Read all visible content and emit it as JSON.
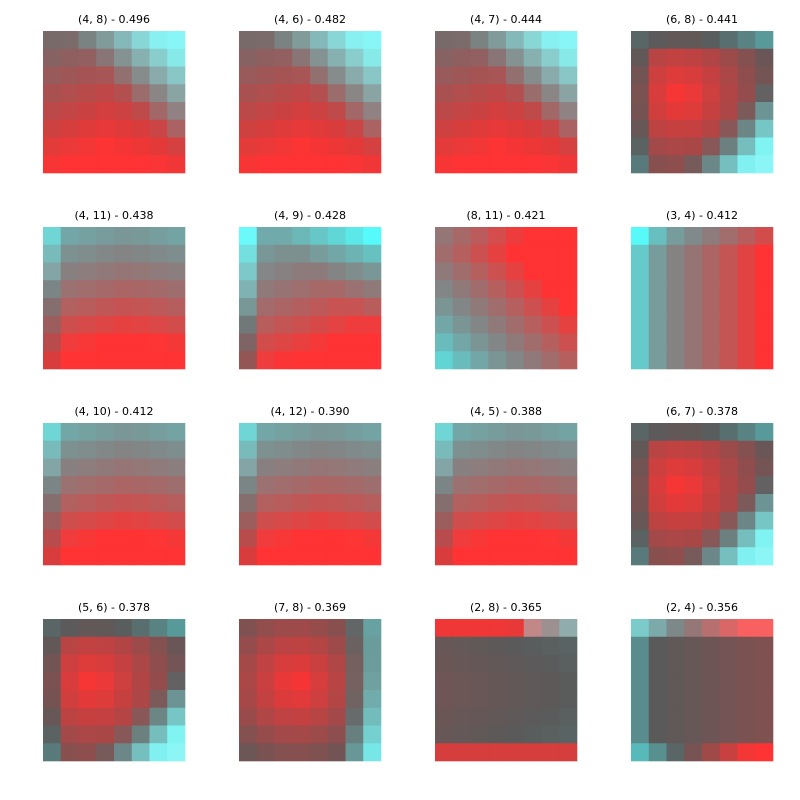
{
  "chart_data": {
    "type": "heatmap",
    "layout": {
      "rows": 4,
      "cols": 4
    },
    "cell_grid": 8,
    "axes_visible": false,
    "colormap": {
      "low": "#55FFFF",
      "mid": "#5A5A5A",
      "high": "#FF3333"
    },
    "panels": [
      {
        "title": "(4, 8) - 0.496",
        "pattern": "bottom-red-topright-cyan"
      },
      {
        "title": "(4, 6) - 0.482",
        "pattern": "bottom-red-topright-cyan"
      },
      {
        "title": "(4, 7) - 0.444",
        "pattern": "bottom-red-topright-cyan"
      },
      {
        "title": "(6, 8) - 0.441",
        "pattern": "center-red-bottomright-cyan"
      },
      {
        "title": "(4, 11) - 0.438",
        "pattern": "top-cyan-bottom-red"
      },
      {
        "title": "(4, 9) - 0.428",
        "pattern": "topright-cyan-bottom-red"
      },
      {
        "title": "(8, 11) - 0.421",
        "pattern": "topright-red-bottomleft-cyan"
      },
      {
        "title": "(3, 4) - 0.412",
        "pattern": "left-cyan-right-red"
      },
      {
        "title": "(4, 10) - 0.412",
        "pattern": "top-cyan-bottom-red"
      },
      {
        "title": "(4, 12) - 0.390",
        "pattern": "top-cyan-bottom-red"
      },
      {
        "title": "(4, 5) - 0.388",
        "pattern": "top-cyan-bottom-red"
      },
      {
        "title": "(6, 7) - 0.378",
        "pattern": "center-red-bottomright-cyan"
      },
      {
        "title": "(5, 6) - 0.378",
        "pattern": "center-red-bottomright-cyan"
      },
      {
        "title": "(7, 8) - 0.369",
        "pattern": "center-red-right-cyan"
      },
      {
        "title": "(2, 8) - 0.365",
        "pattern": "dark-center-red-edges"
      },
      {
        "title": "(2, 4) - 0.356",
        "pattern": "dark-topleft-cyan-bottomright-red"
      }
    ]
  }
}
